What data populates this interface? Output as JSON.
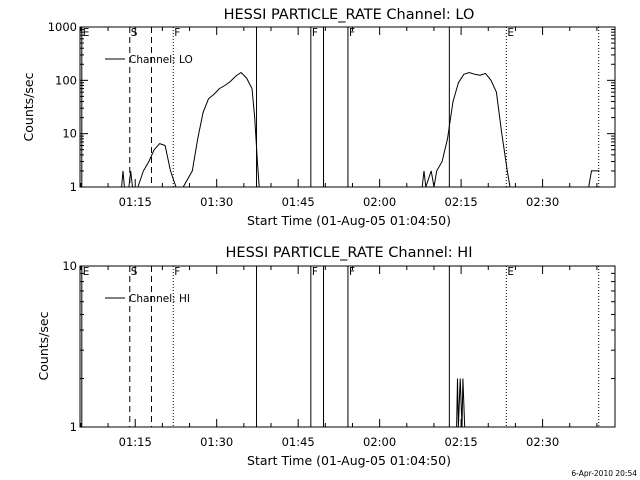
{
  "chart_data": [
    {
      "type": "line",
      "title": "HESSI PARTICLE_RATE Channel: LO",
      "xlabel": "Start Time (01-Aug-05 01:04:50)",
      "ylabel": "Counts/sec",
      "y_scale": "log",
      "ylim": [
        1,
        1000
      ],
      "xlim": [
        "01:04:50",
        "02:43:20"
      ],
      "x_tick_labels": [
        "01:15",
        "01:30",
        "01:45",
        "02:00",
        "02:15",
        "02:30"
      ],
      "y_tick_labels": [
        "1",
        "10",
        "100",
        "1000"
      ],
      "legend": {
        "label": "Channel: LO",
        "placement": "top-left"
      },
      "series": [
        {
          "name": "Channel: LO",
          "points": [
            [
              "01:12:30",
              1
            ],
            [
              "01:12:45",
              2
            ],
            [
              "01:13:00",
              1
            ],
            [
              "01:13:50",
              1
            ],
            [
              "01:14:10",
              2
            ],
            [
              "01:14:30",
              1
            ],
            [
              "01:15:30",
              1
            ],
            [
              "01:16:30",
              2
            ],
            [
              "01:17:30",
              3
            ],
            [
              "01:18:30",
              5
            ],
            [
              "01:19:30",
              6.5
            ],
            [
              "01:20:30",
              6
            ],
            [
              "01:21:30",
              2
            ],
            [
              "01:22:30",
              1
            ],
            [
              "01:23:50",
              1
            ],
            [
              "01:25:30",
              2
            ],
            [
              "01:26:30",
              8
            ],
            [
              "01:27:30",
              25
            ],
            [
              "01:28:30",
              45
            ],
            [
              "01:29:30",
              55
            ],
            [
              "01:30:30",
              70
            ],
            [
              "01:31:30",
              80
            ],
            [
              "01:32:30",
              95
            ],
            [
              "01:33:30",
              120
            ],
            [
              "01:34:30",
              140
            ],
            [
              "01:35:30",
              110
            ],
            [
              "01:36:30",
              70
            ],
            [
              "01:37:00",
              20
            ],
            [
              "01:37:30",
              3
            ],
            [
              "01:37:50",
              1
            ],
            [
              "02:07:50",
              1
            ],
            [
              "02:08:10",
              2
            ],
            [
              "02:08:30",
              1
            ],
            [
              "02:09:30",
              2
            ],
            [
              "02:10:00",
              1
            ],
            [
              "02:10:30",
              2
            ],
            [
              "02:11:30",
              3
            ],
            [
              "02:12:30",
              8
            ],
            [
              "02:13:30",
              40
            ],
            [
              "02:14:30",
              90
            ],
            [
              "02:15:30",
              130
            ],
            [
              "02:16:30",
              140
            ],
            [
              "02:17:30",
              130
            ],
            [
              "02:18:30",
              125
            ],
            [
              "02:19:30",
              135
            ],
            [
              "02:20:30",
              100
            ],
            [
              "02:21:30",
              60
            ],
            [
              "02:22:30",
              10
            ],
            [
              "02:23:30",
              2
            ],
            [
              "02:24:00",
              1
            ],
            [
              "02:38:30",
              1
            ],
            [
              "02:39:00",
              2
            ],
            [
              "02:40:30",
              2
            ]
          ]
        }
      ]
    },
    {
      "type": "line",
      "title": "HESSI PARTICLE_RATE Channel: HI",
      "xlabel": "Start Time (01-Aug-05 01:04:50)",
      "ylabel": "Counts/sec",
      "y_scale": "log",
      "ylim": [
        1,
        10
      ],
      "xlim": [
        "01:04:50",
        "02:43:20"
      ],
      "x_tick_labels": [
        "01:15",
        "01:30",
        "01:45",
        "02:00",
        "02:15",
        "02:30"
      ],
      "y_tick_labels": [
        "1",
        "10"
      ],
      "legend": {
        "label": "Channel: HI",
        "placement": "top-left"
      },
      "series": [
        {
          "name": "Channel: HI",
          "points": [
            [
              "02:14:10",
              1
            ],
            [
              "02:14:20",
              2
            ],
            [
              "02:14:30",
              1
            ],
            [
              "02:14:50",
              2
            ],
            [
              "02:15:10",
              1
            ],
            [
              "02:15:20",
              2
            ],
            [
              "02:15:40",
              1
            ]
          ]
        }
      ]
    }
  ],
  "flag_markers": [
    {
      "label": "E",
      "time": "01:05:10",
      "style": "solid"
    },
    {
      "label": "S",
      "time": "01:14:00",
      "style": "dashed"
    },
    {
      "label": "",
      "time": "01:18:00",
      "style": "dashed"
    },
    {
      "label": "F",
      "time": "01:22:00",
      "style": "dotted"
    },
    {
      "label": "",
      "time": "01:37:20",
      "style": "solid"
    },
    {
      "label": "F",
      "time": "01:47:20",
      "style": "solid"
    },
    {
      "label": "",
      "time": "01:49:40",
      "style": "solid"
    },
    {
      "label": "F",
      "time": "01:54:10",
      "style": "solid"
    },
    {
      "label": "",
      "time": "02:12:50",
      "style": "solid"
    },
    {
      "label": "E",
      "time": "02:23:20",
      "style": "dotted"
    },
    {
      "label": "",
      "time": "02:40:20",
      "style": "dotted"
    }
  ],
  "timestamp": "6-Apr-2010 20:54"
}
